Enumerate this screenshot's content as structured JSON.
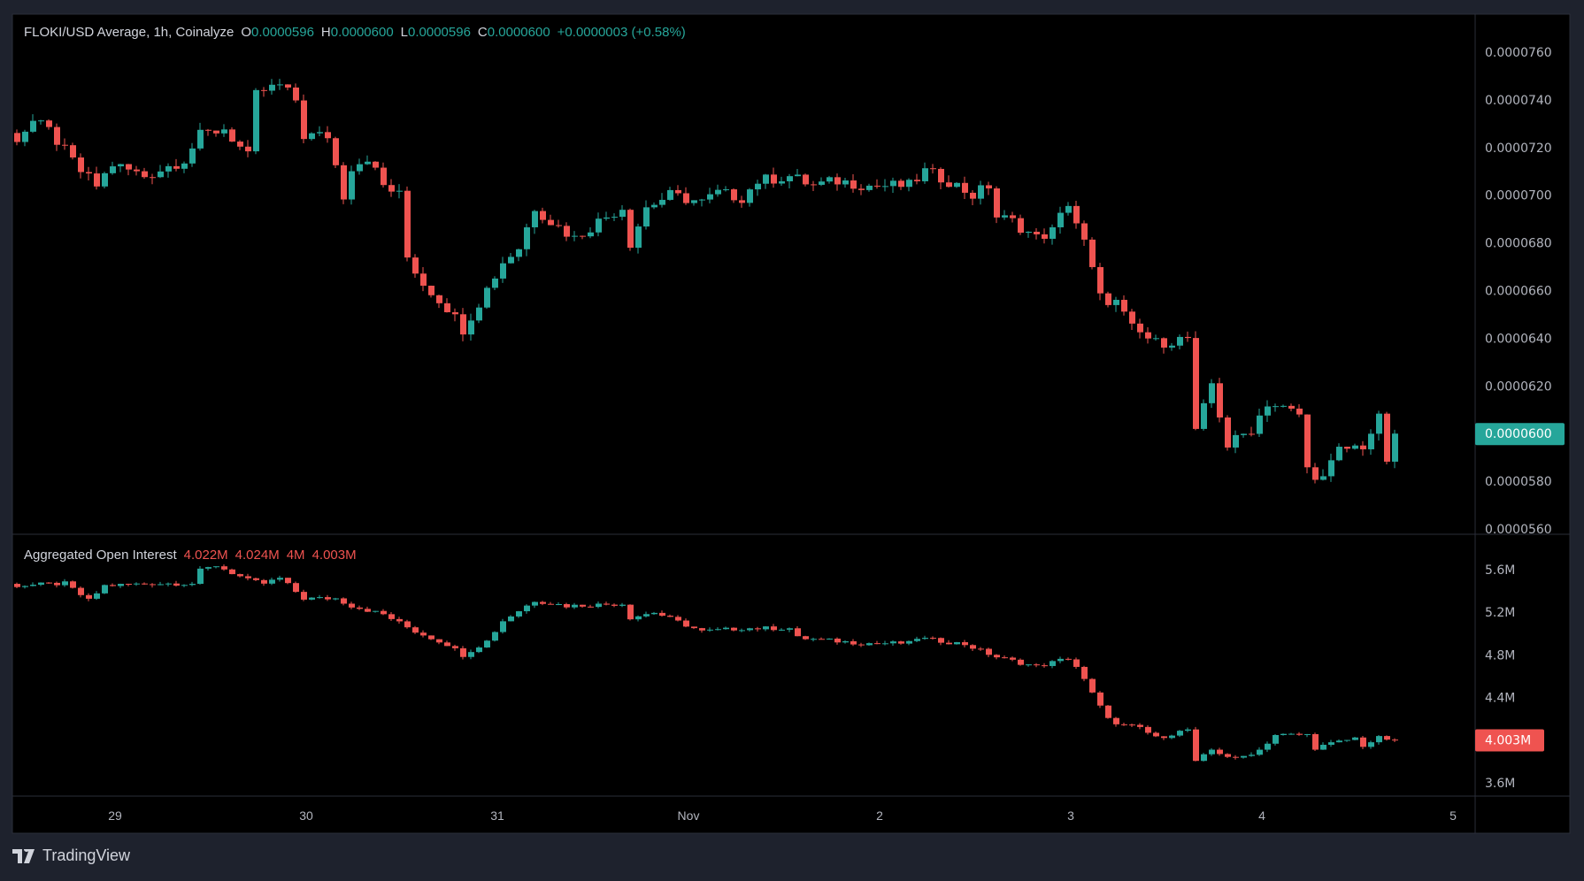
{
  "legend": {
    "symbol": "FLOKI/USD Average, 1h, Coinalyze",
    "o_label": "O",
    "o": "0.0000596",
    "h_label": "H",
    "h": "0.0000600",
    "l_label": "L",
    "l": "0.0000596",
    "c_label": "C",
    "c": "0.0000600",
    "change": "+0.0000003 (+0.58%)"
  },
  "oi_legend": {
    "title": "Aggregated Open Interest",
    "v1": "4.022M",
    "v2": "4.024M",
    "v3": "4M",
    "v4": "4.003M"
  },
  "footer": {
    "brand": "TradingView"
  },
  "colors": {
    "up": "#26a69a",
    "down": "#ef5350",
    "bg": "#000000",
    "frame": "#1e222d"
  },
  "chart_data": [
    {
      "type": "candlestick",
      "title": "FLOKI/USD Average, 1h, Coinalyze",
      "unit_note": "close values in 1e-7 USD",
      "x_unit": "hours since first candle",
      "close_path": [
        [
          0,
          724
        ],
        [
          2,
          731
        ],
        [
          4,
          727
        ],
        [
          8,
          710
        ],
        [
          10,
          704
        ],
        [
          12,
          713
        ],
        [
          16,
          708
        ],
        [
          21,
          715
        ],
        [
          23,
          725
        ],
        [
          26,
          728
        ],
        [
          29,
          716
        ],
        [
          30,
          742
        ],
        [
          31,
          744
        ],
        [
          33,
          746
        ],
        [
          35,
          740
        ],
        [
          36,
          725
        ],
        [
          39,
          725
        ],
        [
          41,
          700
        ],
        [
          42,
          712
        ],
        [
          44,
          716
        ],
        [
          46,
          704
        ],
        [
          48,
          700
        ],
        [
          49,
          674
        ],
        [
          51,
          663
        ],
        [
          54,
          653
        ],
        [
          56,
          644
        ],
        [
          58,
          655
        ],
        [
          61,
          672
        ],
        [
          63,
          678
        ],
        [
          65,
          695
        ],
        [
          67,
          689
        ],
        [
          70,
          682
        ],
        [
          73,
          689
        ],
        [
          76,
          695
        ],
        [
          77,
          680
        ],
        [
          79,
          695
        ],
        [
          82,
          700
        ],
        [
          86,
          697
        ],
        [
          88,
          701
        ],
        [
          91,
          699
        ],
        [
          93,
          706
        ],
        [
          97,
          708
        ],
        [
          100,
          704
        ],
        [
          103,
          706
        ],
        [
          107,
          704
        ],
        [
          112,
          704
        ],
        [
          114,
          710
        ],
        [
          117,
          706
        ],
        [
          120,
          700
        ],
        [
          122,
          704
        ],
        [
          123,
          691
        ],
        [
          125,
          689
        ],
        [
          128,
          682
        ],
        [
          130,
          685
        ],
        [
          132,
          697
        ],
        [
          134,
          680
        ],
        [
          136,
          657
        ],
        [
          138,
          655
        ],
        [
          140,
          644
        ],
        [
          141,
          642
        ],
        [
          143,
          638
        ],
        [
          147,
          640
        ],
        [
          148,
          600
        ],
        [
          150,
          621
        ],
        [
          152,
          595
        ],
        [
          155,
          602
        ],
        [
          157,
          613
        ],
        [
          161,
          608
        ],
        [
          162,
          585
        ],
        [
          164,
          581
        ],
        [
          166,
          593
        ],
        [
          169,
          595
        ],
        [
          171,
          606
        ],
        [
          172,
          589
        ],
        [
          173,
          600
        ]
      ],
      "y_ticks": [
        "0.0000760",
        "0.0000740",
        "0.0000720",
        "0.0000700",
        "0.0000680",
        "0.0000660",
        "0.0000640",
        "0.0000620",
        "0.0000580",
        "0.0000560"
      ],
      "y_tick_values": [
        760,
        740,
        720,
        700,
        680,
        660,
        640,
        620,
        580,
        560
      ],
      "last_price_label": "0.0000600",
      "last_price_value": 600
    },
    {
      "type": "candlestick",
      "title": "Aggregated Open Interest",
      "unit_note": "millions",
      "close_path": [
        [
          0,
          5.45
        ],
        [
          6,
          5.47
        ],
        [
          9,
          5.31
        ],
        [
          11,
          5.45
        ],
        [
          17,
          5.47
        ],
        [
          22,
          5.47
        ],
        [
          23,
          5.59
        ],
        [
          25,
          5.64
        ],
        [
          29,
          5.5
        ],
        [
          31,
          5.47
        ],
        [
          33,
          5.52
        ],
        [
          36,
          5.33
        ],
        [
          40,
          5.33
        ],
        [
          42,
          5.26
        ],
        [
          46,
          5.18
        ],
        [
          50,
          5.02
        ],
        [
          54,
          4.9
        ],
        [
          56,
          4.8
        ],
        [
          59,
          4.93
        ],
        [
          61,
          5.12
        ],
        [
          65,
          5.31
        ],
        [
          69,
          5.26
        ],
        [
          76,
          5.28
        ],
        [
          77,
          5.15
        ],
        [
          80,
          5.2
        ],
        [
          86,
          5.02
        ],
        [
          91,
          5.05
        ],
        [
          97,
          5.05
        ],
        [
          98,
          4.96
        ],
        [
          106,
          4.91
        ],
        [
          112,
          4.91
        ],
        [
          113,
          4.96
        ],
        [
          119,
          4.9
        ],
        [
          123,
          4.78
        ],
        [
          128,
          4.69
        ],
        [
          132,
          4.77
        ],
        [
          133,
          4.69
        ],
        [
          136,
          4.31
        ],
        [
          138,
          4.14
        ],
        [
          141,
          4.12
        ],
        [
          143,
          4.02
        ],
        [
          147,
          4.1
        ],
        [
          148,
          3.79
        ],
        [
          150,
          3.91
        ],
        [
          153,
          3.82
        ],
        [
          156,
          3.91
        ],
        [
          158,
          4.05
        ],
        [
          162,
          4.05
        ],
        [
          163,
          3.93
        ],
        [
          168,
          4.02
        ],
        [
          169,
          3.95
        ],
        [
          171,
          4.02
        ],
        [
          173,
          4.003
        ]
      ],
      "y_ticks": [
        "5.6M",
        "5.2M",
        "4.8M",
        "4.4M",
        "3.6M"
      ],
      "y_tick_values": [
        5.6,
        5.2,
        4.8,
        4.4,
        3.6
      ],
      "last_label": "4.003M",
      "last_value": 4.003
    }
  ],
  "x_ticks": [
    {
      "label": "29",
      "hour": 13
    },
    {
      "label": "30",
      "hour": 37
    },
    {
      "label": "31",
      "hour": 61
    },
    {
      "label": "Nov",
      "hour": 85
    },
    {
      "label": "2",
      "hour": 109
    },
    {
      "label": "3",
      "hour": 133
    },
    {
      "label": "4",
      "hour": 157
    },
    {
      "label": "5",
      "hour": 181
    }
  ]
}
